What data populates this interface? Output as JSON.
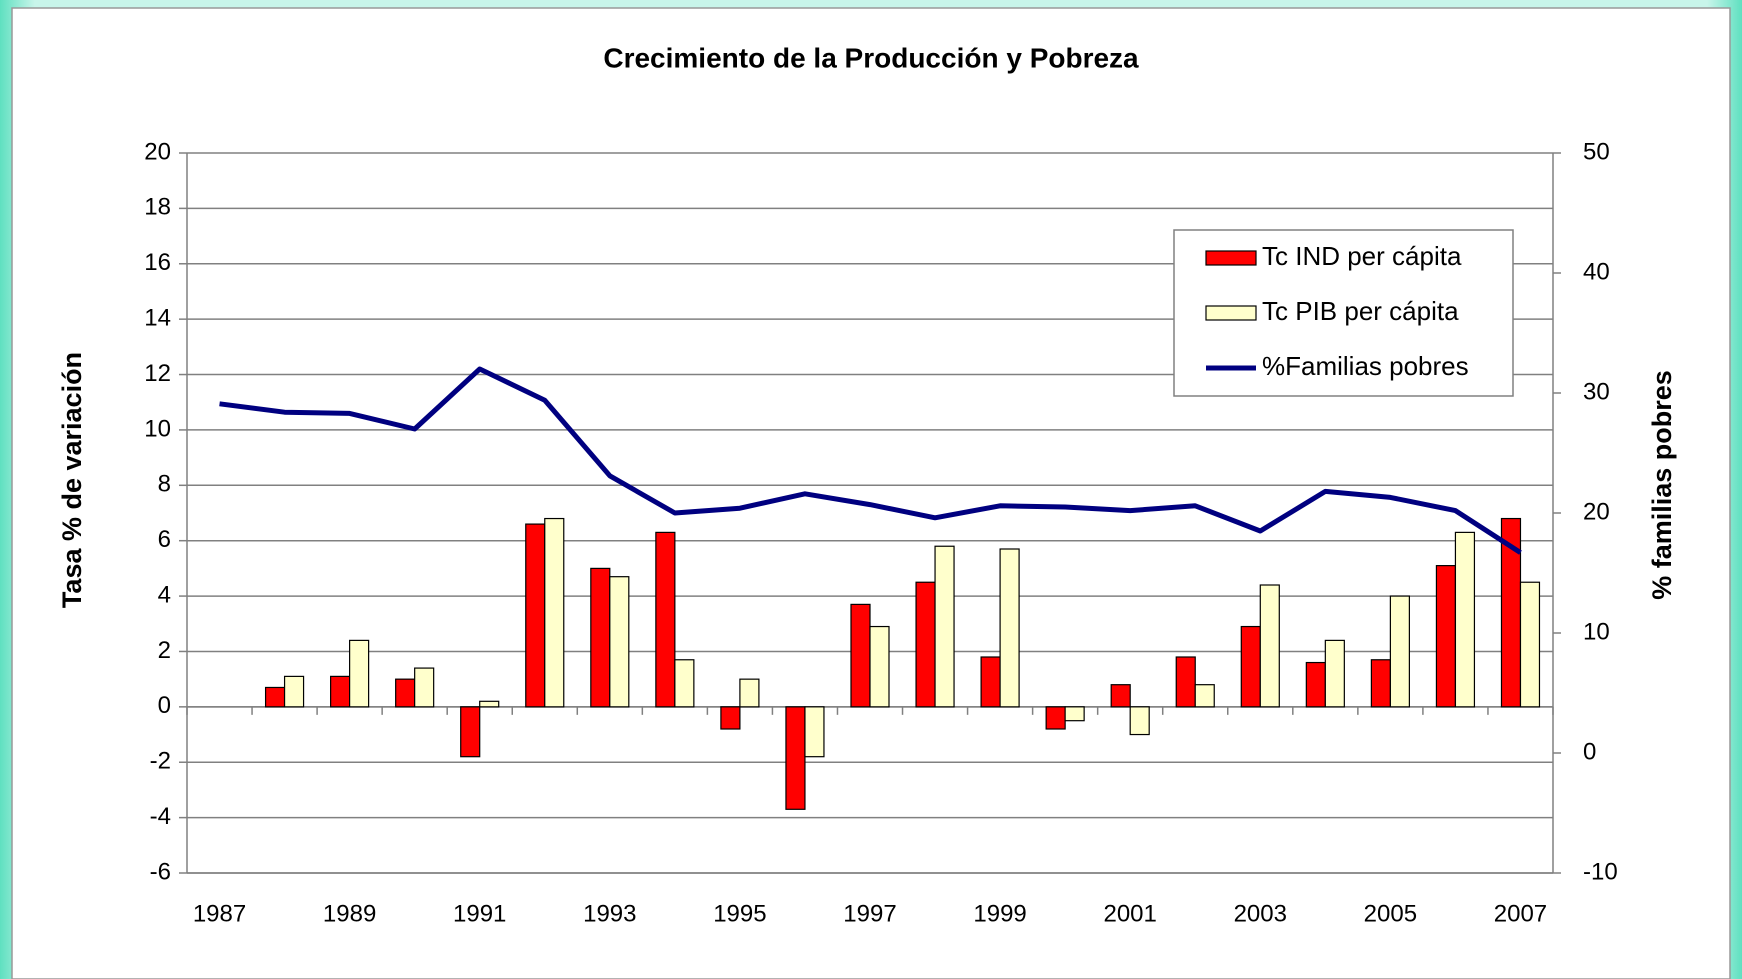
{
  "chart_data": {
    "type": "bar",
    "title": "Crecimiento de la Producción y Pobreza",
    "y_label": "Tasa % de variación",
    "y2_label": "% familias pobres",
    "categories": [
      "1987",
      null,
      "1989",
      null,
      "1991",
      null,
      "1993",
      null,
      "1995",
      null,
      "1997",
      null,
      "1999",
      null,
      "2001",
      null,
      "2003",
      null,
      "2005",
      null,
      "2007"
    ],
    "series": [
      {
        "name": "Tc IND per cápita",
        "color": "#ff0000",
        "type": "bar",
        "values": [
          null,
          0.7,
          1.1,
          1.0,
          -1.8,
          6.6,
          5.0,
          6.3,
          -0.8,
          -3.7,
          3.7,
          4.5,
          1.8,
          -0.8,
          0.8,
          1.8,
          2.9,
          1.6,
          1.7,
          5.1,
          6.8
        ]
      },
      {
        "name": "Tc PIB per cápita",
        "color": "#ffffcc",
        "type": "bar",
        "values": [
          null,
          1.1,
          2.4,
          1.4,
          0.2,
          6.8,
          4.7,
          1.7,
          1.0,
          -1.8,
          2.9,
          5.8,
          5.7,
          -0.5,
          -1.0,
          0.8,
          4.4,
          2.4,
          4.0,
          6.3,
          4.5
        ]
      },
      {
        "name": "%Familias pobres",
        "color": "#000080",
        "type": "line",
        "axis": "y2",
        "values": [
          29.1,
          28.4,
          28.3,
          27.0,
          32.0,
          29.4,
          23.1,
          20.0,
          20.4,
          21.6,
          20.7,
          19.6,
          20.6,
          20.5,
          20.2,
          20.6,
          18.5,
          21.8,
          21.3,
          20.2,
          16.7
        ]
      }
    ],
    "ylim": [
      -6,
      20
    ],
    "yticks": [
      -6,
      -4,
      -2,
      0,
      2,
      4,
      6,
      8,
      10,
      12,
      14,
      16,
      18,
      20
    ],
    "y2lim": [
      -10,
      50
    ],
    "y2ticks": [
      -10,
      0,
      10,
      20,
      30,
      40,
      50
    ],
    "grid": true,
    "legend": "upper right"
  }
}
